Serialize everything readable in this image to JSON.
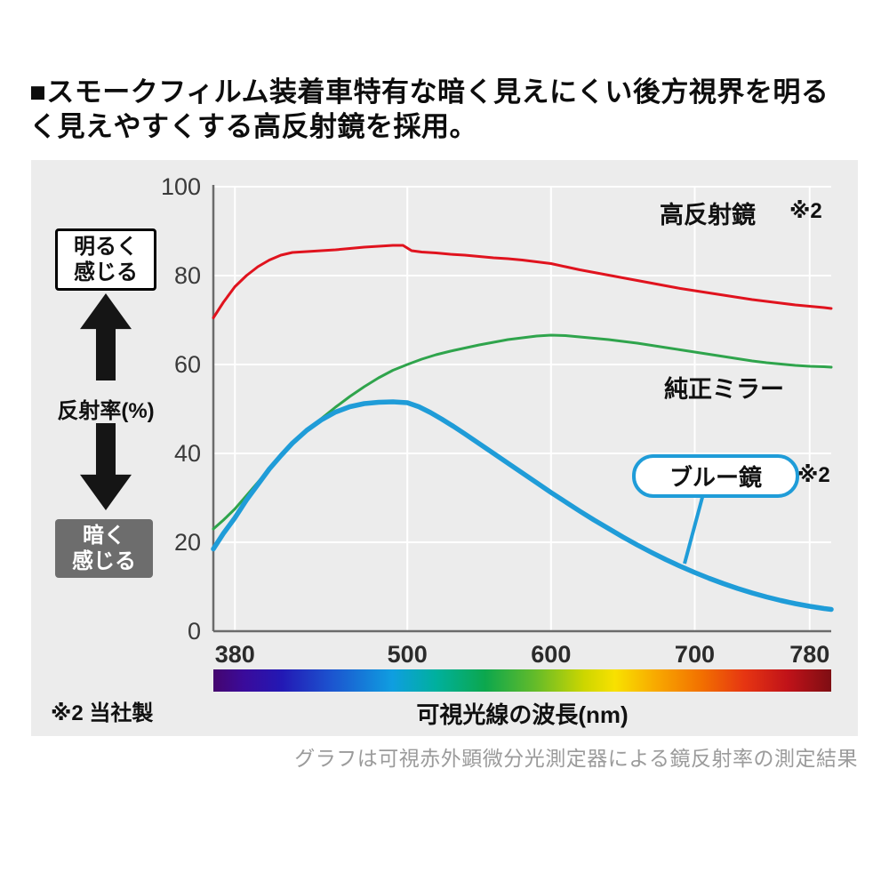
{
  "headline": {
    "line1": "■スモークフィルム装着車特有な暗く見えにくい後方視界を明る",
    "line2": "く見えやすくする高反射鏡を採用。"
  },
  "left_panel": {
    "bright_label_line1": "明るく",
    "bright_label_line2": "感じる",
    "dark_label_line1": "暗く",
    "dark_label_line2": "感じる",
    "axis_label": "反射率(%)"
  },
  "notes": {
    "red": "※2",
    "blue": "※2"
  },
  "footnote": "※2 当社製",
  "x_axis_title": "可視光線の波長(nm)",
  "caption": "グラフは可視赤外顕微分光測定器による鏡反射率の測定結果",
  "colors": {
    "panel_bg": "#ececec",
    "grid": "#ffffff",
    "axis": "#6b6b6b",
    "red_series": "#e0131e",
    "green_series": "#2fa44c",
    "blue_series": "#1f9cd8"
  },
  "spectrum": {
    "stops": [
      {
        "c": "#45056e",
        "p": 0
      },
      {
        "c": "#3a0b9b",
        "p": 5
      },
      {
        "c": "#2318b4",
        "p": 11
      },
      {
        "c": "#1c53cf",
        "p": 19
      },
      {
        "c": "#0f9ee0",
        "p": 29
      },
      {
        "c": "#00b09e",
        "p": 36
      },
      {
        "c": "#0ca74d",
        "p": 44
      },
      {
        "c": "#63bb2a",
        "p": 52
      },
      {
        "c": "#cdd600",
        "p": 60
      },
      {
        "c": "#f8e100",
        "p": 65
      },
      {
        "c": "#f8a600",
        "p": 72
      },
      {
        "c": "#f27000",
        "p": 79
      },
      {
        "c": "#e63512",
        "p": 86
      },
      {
        "c": "#c01219",
        "p": 93
      },
      {
        "c": "#7e0e13",
        "p": 100
      }
    ]
  },
  "chart_data": {
    "type": "line",
    "title": "",
    "xlabel": "可視光線の波長(nm)",
    "ylabel": "反射率(%)",
    "xlim": [
      365,
      795
    ],
    "ylim": [
      0,
      100
    ],
    "xticks": [
      380,
      500,
      600,
      700,
      780
    ],
    "yticks": [
      0,
      20,
      40,
      60,
      80,
      100
    ],
    "grid": true,
    "legend_position": "inline-annotations",
    "series": [
      {
        "name": "高反射鏡",
        "color": "#e0131e",
        "stroke_width": 3,
        "points": [
          [
            365,
            70.5
          ],
          [
            372,
            74
          ],
          [
            380,
            77.5
          ],
          [
            388,
            80
          ],
          [
            396,
            82
          ],
          [
            404,
            83.5
          ],
          [
            412,
            84.6
          ],
          [
            420,
            85.2
          ],
          [
            430,
            85.4
          ],
          [
            440,
            85.6
          ],
          [
            450,
            85.8
          ],
          [
            460,
            86.1
          ],
          [
            470,
            86.4
          ],
          [
            480,
            86.6
          ],
          [
            490,
            86.8
          ],
          [
            497,
            86.8
          ],
          [
            503,
            85.6
          ],
          [
            510,
            85.3
          ],
          [
            520,
            85.1
          ],
          [
            530,
            84.8
          ],
          [
            540,
            84.6
          ],
          [
            550,
            84.3
          ],
          [
            560,
            84.0
          ],
          [
            570,
            83.8
          ],
          [
            580,
            83.5
          ],
          [
            590,
            83.1
          ],
          [
            600,
            82.7
          ],
          [
            610,
            82.0
          ],
          [
            620,
            81.3
          ],
          [
            630,
            80.7
          ],
          [
            640,
            80.1
          ],
          [
            650,
            79.5
          ],
          [
            660,
            78.9
          ],
          [
            670,
            78.3
          ],
          [
            680,
            77.7
          ],
          [
            690,
            77.1
          ],
          [
            700,
            76.6
          ],
          [
            710,
            76.1
          ],
          [
            720,
            75.6
          ],
          [
            730,
            75.1
          ],
          [
            740,
            74.6
          ],
          [
            750,
            74.2
          ],
          [
            760,
            73.8
          ],
          [
            770,
            73.4
          ],
          [
            780,
            73.1
          ],
          [
            790,
            72.8
          ],
          [
            795,
            72.6
          ]
        ]
      },
      {
        "name": "純正ミラー",
        "color": "#2fa44c",
        "stroke_width": 3,
        "points": [
          [
            365,
            23
          ],
          [
            372,
            25
          ],
          [
            380,
            27.5
          ],
          [
            388,
            30.5
          ],
          [
            396,
            33.5
          ],
          [
            404,
            36.5
          ],
          [
            412,
            39.5
          ],
          [
            420,
            42
          ],
          [
            430,
            45
          ],
          [
            440,
            47.8
          ],
          [
            450,
            50.4
          ],
          [
            460,
            52.8
          ],
          [
            470,
            55
          ],
          [
            480,
            57
          ],
          [
            490,
            58.7
          ],
          [
            500,
            60
          ],
          [
            510,
            61.2
          ],
          [
            520,
            62.2
          ],
          [
            530,
            63
          ],
          [
            540,
            63.7
          ],
          [
            550,
            64.4
          ],
          [
            560,
            65
          ],
          [
            570,
            65.6
          ],
          [
            580,
            66
          ],
          [
            590,
            66.4
          ],
          [
            600,
            66.6
          ],
          [
            610,
            66.5
          ],
          [
            620,
            66.2
          ],
          [
            630,
            65.9
          ],
          [
            640,
            65.6
          ],
          [
            650,
            65.2
          ],
          [
            660,
            64.8
          ],
          [
            670,
            64.3
          ],
          [
            680,
            63.8
          ],
          [
            690,
            63.3
          ],
          [
            700,
            62.8
          ],
          [
            710,
            62.3
          ],
          [
            720,
            61.8
          ],
          [
            730,
            61.3
          ],
          [
            740,
            60.8
          ],
          [
            750,
            60.4
          ],
          [
            760,
            60.1
          ],
          [
            770,
            59.8
          ],
          [
            780,
            59.6
          ],
          [
            790,
            59.5
          ],
          [
            795,
            59.4
          ]
        ]
      },
      {
        "name": "ブルー鏡",
        "color": "#1f9cd8",
        "stroke_width": 5.5,
        "points": [
          [
            365,
            18.5
          ],
          [
            372,
            22
          ],
          [
            380,
            25.5
          ],
          [
            388,
            29.5
          ],
          [
            396,
            33
          ],
          [
            404,
            36.5
          ],
          [
            412,
            39.5
          ],
          [
            420,
            42.3
          ],
          [
            430,
            45.2
          ],
          [
            440,
            47.5
          ],
          [
            450,
            49.3
          ],
          [
            460,
            50.5
          ],
          [
            470,
            51.2
          ],
          [
            480,
            51.5
          ],
          [
            490,
            51.6
          ],
          [
            500,
            51.4
          ],
          [
            508,
            50.5
          ],
          [
            516,
            49.2
          ],
          [
            524,
            47.7
          ],
          [
            532,
            46.1
          ],
          [
            540,
            44.4
          ],
          [
            550,
            42.2
          ],
          [
            560,
            40
          ],
          [
            570,
            37.8
          ],
          [
            580,
            35.6
          ],
          [
            590,
            33.4
          ],
          [
            600,
            31.2
          ],
          [
            610,
            29.1
          ],
          [
            620,
            27
          ],
          [
            630,
            25
          ],
          [
            640,
            23.1
          ],
          [
            650,
            21.2
          ],
          [
            660,
            19.4
          ],
          [
            670,
            17.7
          ],
          [
            680,
            16.1
          ],
          [
            690,
            14.6
          ],
          [
            700,
            13.2
          ],
          [
            710,
            11.9
          ],
          [
            720,
            10.7
          ],
          [
            730,
            9.6
          ],
          [
            740,
            8.6
          ],
          [
            750,
            7.7
          ],
          [
            760,
            6.9
          ],
          [
            770,
            6.2
          ],
          [
            780,
            5.6
          ],
          [
            790,
            5.1
          ],
          [
            795,
            4.9
          ]
        ]
      }
    ]
  }
}
